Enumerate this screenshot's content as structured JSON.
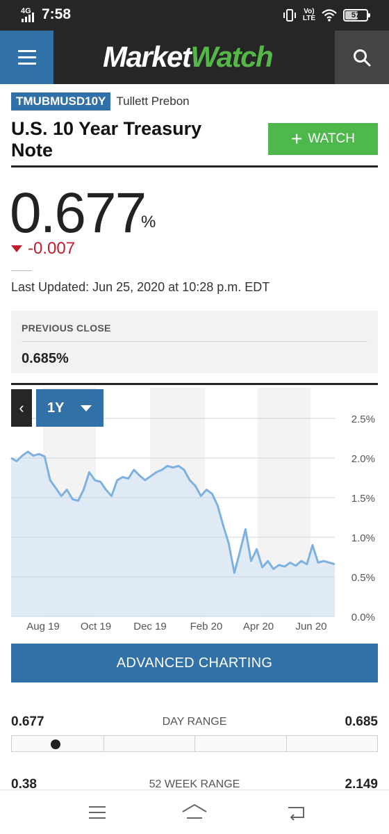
{
  "status_bar": {
    "network": "4G",
    "time": "7:58",
    "volte": "Vo)\nLTE",
    "battery": "57"
  },
  "header": {
    "logo_part1": "Market",
    "logo_part2": "Watch"
  },
  "instrument": {
    "ticker": "TMUBMUSD10Y",
    "exchange": "Tullett Prebon",
    "title": "U.S. 10 Year Treasury Note",
    "watch_label": "WATCH",
    "price": "0.677",
    "price_unit": "%",
    "change": "-0.007",
    "last_updated": "Last Updated: Jun 25, 2020 at 10:28 p.m. EDT"
  },
  "previous_close": {
    "label": "PREVIOUS CLOSE",
    "value": "0.685%"
  },
  "chart_controls": {
    "back_label": "‹",
    "range": "1Y"
  },
  "chart_data": {
    "type": "area",
    "title": "",
    "xlabel": "",
    "ylabel": "",
    "x_tick_labels": [
      "Aug 19",
      "Oct 19",
      "Dec 19",
      "Feb 20",
      "Apr 20",
      "Jun 20"
    ],
    "y_tick_labels": [
      "2.5%",
      "2.0%",
      "1.5%",
      "1.0%",
      "0.5%",
      "0.0%"
    ],
    "ylim": [
      0,
      2.5
    ],
    "grid": true,
    "series": [
      {
        "values": [
          2.0,
          1.96,
          2.03,
          2.08,
          2.03,
          2.05,
          2.02,
          1.72,
          1.62,
          1.52,
          1.6,
          1.48,
          1.46,
          1.6,
          1.82,
          1.72,
          1.7,
          1.6,
          1.52,
          1.72,
          1.76,
          1.74,
          1.85,
          1.78,
          1.72,
          1.77,
          1.82,
          1.85,
          1.9,
          1.88,
          1.9,
          1.85,
          1.72,
          1.65,
          1.52,
          1.6,
          1.55,
          1.4,
          1.15,
          0.92,
          0.55,
          0.82,
          1.1,
          0.7,
          0.85,
          0.62,
          0.7,
          0.6,
          0.65,
          0.63,
          0.68,
          0.64,
          0.7,
          0.66,
          0.9,
          0.68,
          0.7,
          0.68,
          0.66
        ]
      }
    ]
  },
  "actions": {
    "advanced_charting": "ADVANCED CHARTING"
  },
  "day_range": {
    "low": "0.677",
    "label": "DAY RANGE",
    "high": "0.685",
    "position": 0.0
  },
  "week52_range": {
    "low": "0.38",
    "label": "52 WEEK RANGE",
    "high": "2.149"
  },
  "icons": {
    "menu": "hamburger-icon",
    "search": "search-icon",
    "plus": "plus-icon"
  }
}
